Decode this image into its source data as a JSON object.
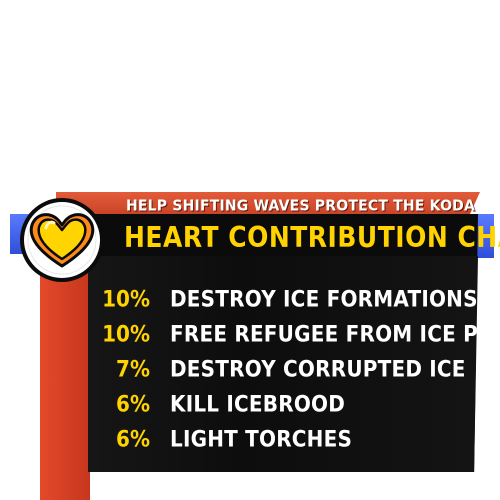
{
  "header": {
    "subtitle": "HELP SHIFTING WAVES PROTECT THE KODAN AT PATH...",
    "title": "HEART CONTRIBUTION CHART"
  },
  "badge": {
    "icon": "heart-icon",
    "colors": {
      "heart_fill": "#ffd400",
      "heart_outline": "#ff8a1c",
      "ring": "#0b0b0b"
    }
  },
  "contributions": [
    {
      "percent": "10%",
      "task": "DESTROY ICE FORMATIONS"
    },
    {
      "percent": "10%",
      "task": "FREE REFUGEE FROM ICE PRISON"
    },
    {
      "percent": "7%",
      "task": "DESTROY CORRUPTED ICE"
    },
    {
      "percent": "6%",
      "task": "KILL ICEBROOD"
    },
    {
      "percent": "6%",
      "task": "LIGHT TORCHES"
    }
  ],
  "colors": {
    "accent_yellow": "#ffd200",
    "header_orange": "#d9472a",
    "side_blue": "#3b5cf0",
    "panel_black": "#0b0b0b"
  }
}
